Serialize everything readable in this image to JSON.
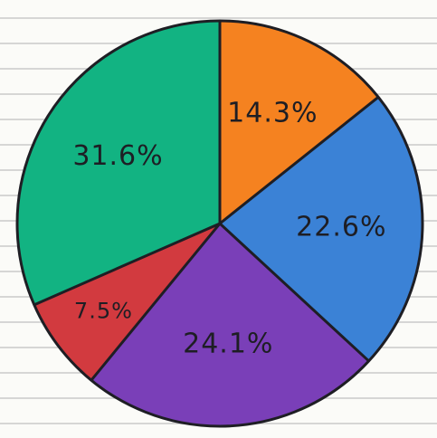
{
  "chart_data": {
    "type": "pie",
    "title": "",
    "categories": [
      "",
      "",
      "",
      "",
      ""
    ],
    "values": [
      14.3,
      22.6,
      24.1,
      7.5,
      31.6
    ],
    "labels": [
      "14.3%",
      "22.6%",
      "24.1%",
      "7.5%",
      "31.6%"
    ],
    "colors": [
      "#f58220",
      "#3b82d6",
      "#7a3fb8",
      "#d23a3f",
      "#12b382"
    ],
    "legend": "none",
    "start_angle_deg": -90,
    "direction": "clockwise"
  },
  "background": {
    "style": "lined-paper",
    "line_color": "#c9c9c9"
  }
}
